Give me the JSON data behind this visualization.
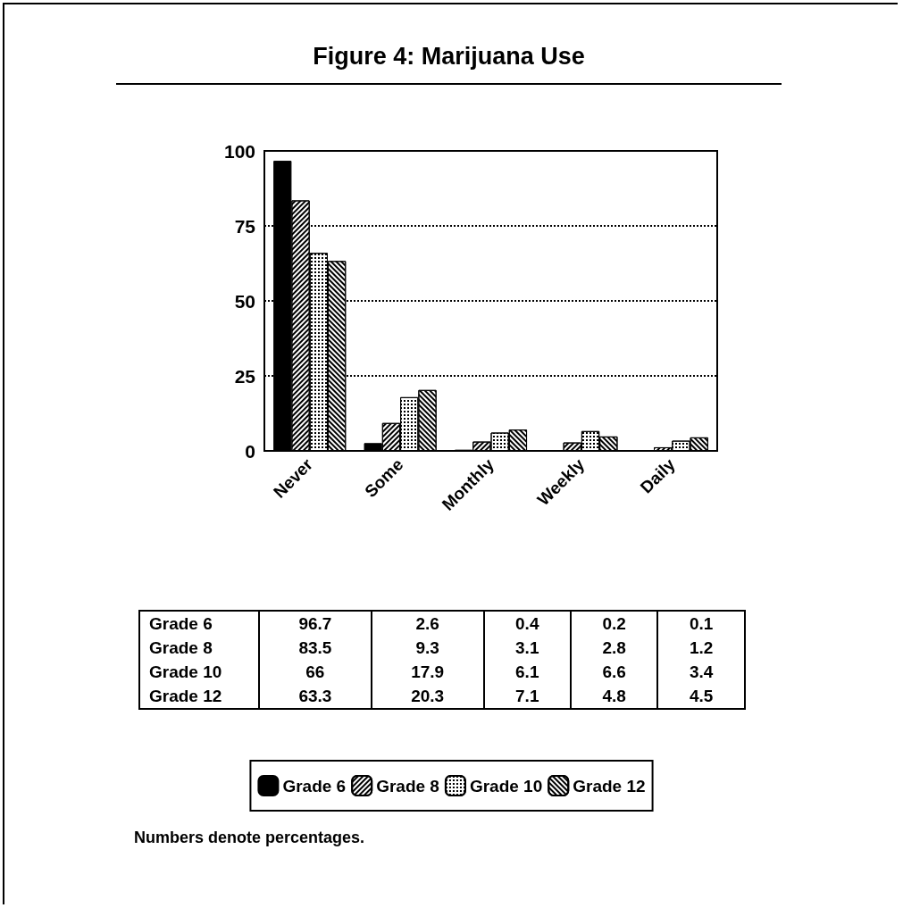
{
  "chart_data": {
    "type": "bar",
    "title": "Figure 4:  Marijuana Use",
    "categories": [
      "Never",
      "Some",
      "Monthly",
      "Weekly",
      "Daily"
    ],
    "series": [
      {
        "name": "Grade 6",
        "color": "#000000",
        "values": [
          96.7,
          2.6,
          0.4,
          0.2,
          0.1
        ]
      },
      {
        "name": "Grade 8",
        "color": "#000000",
        "values": [
          83.5,
          9.3,
          3.1,
          2.8,
          1.2
        ]
      },
      {
        "name": "Grade 10",
        "color": "#000000",
        "values": [
          66,
          17.9,
          6.1,
          6.6,
          3.4
        ]
      },
      {
        "name": "Grade 12",
        "color": "#000000",
        "values": [
          63.3,
          20.3,
          7.1,
          4.8,
          4.5
        ]
      }
    ],
    "ylim": [
      0,
      100
    ],
    "yticks": [
      0,
      25,
      50,
      75,
      100
    ],
    "grid": "y",
    "legend": "bottom",
    "data_labels": true,
    "annotations": [
      "Numbers denote percentages."
    ]
  }
}
